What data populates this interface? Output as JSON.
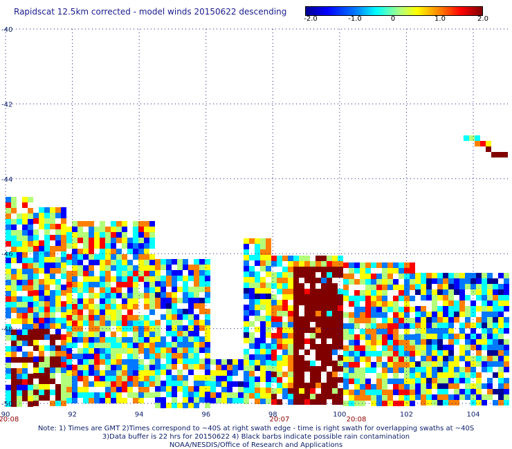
{
  "title": "Rapidscat 12.5km corrected - model winds 20150622 descending",
  "colorbar": {
    "ticks": [
      "-2.0",
      "-1.0",
      "0",
      "1.0",
      "2.0"
    ],
    "tick_values": [
      -2.0,
      -1.0,
      0,
      1.0,
      2.0
    ],
    "range": [
      -2.0,
      2.0
    ],
    "colors": [
      "#000090",
      "#0000ff",
      "#0078ff",
      "#00ffff",
      "#b4ff7a",
      "#ffff00",
      "#ff8000",
      "#ff0000",
      "#800000"
    ]
  },
  "map": {
    "lon_ticks": [
      "90",
      "92",
      "94",
      "96",
      "98",
      "100",
      "102",
      "104"
    ],
    "lon_values": [
      90,
      92,
      94,
      96,
      98,
      100,
      102,
      104
    ],
    "lat_ticks": [
      "-40",
      "-42",
      "-44",
      "-46",
      "-48",
      "-50"
    ],
    "lat_values": [
      -40,
      -42,
      -44,
      -46,
      -48,
      -50
    ],
    "lon_range": [
      90,
      104.9
    ],
    "lat_range": [
      -40,
      -50
    ],
    "grid": "dotted",
    "time_labels": [
      {
        "text": "20:08",
        "lon": 90.1
      },
      {
        "text": "20:07",
        "lon": 98.2
      },
      {
        "text": "20:08",
        "lon": 100.5
      }
    ]
  },
  "notes": [
    "Note: 1) Times are GMT 2)Times correspond to ~40S at right swath edge - time is right swath for overlapping swaths at ~40S",
    "3)Data buffer is 22 hrs for 20150622 4) Black barbs indicate possible rain contamination",
    "NOAA/NESDIS/Office of Research and Applications"
  ]
}
